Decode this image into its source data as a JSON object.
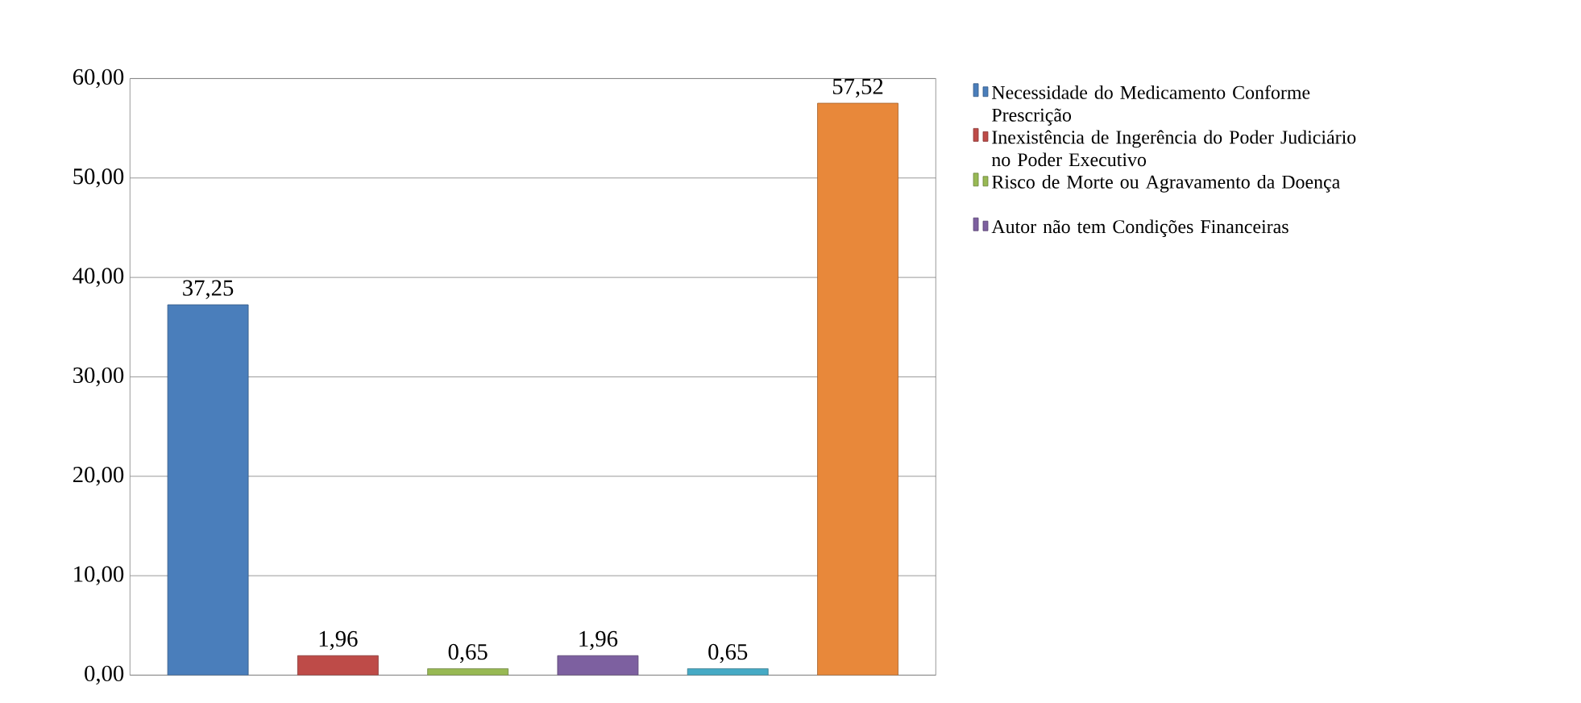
{
  "chart_data": {
    "type": "bar",
    "categories": [
      null
    ],
    "series": [
      {
        "name": "Necessidade do Medicamento Conforme Prescrição",
        "color": "#4a7ebb",
        "values": [
          37.25
        ],
        "value_labels": [
          "37,25"
        ]
      },
      {
        "name": "Inexistência de Ingerência do Poder Judiciário no Poder Executivo",
        "color": "#be4b48",
        "values": [
          1.96
        ],
        "value_labels": [
          "1,96"
        ]
      },
      {
        "name": "Risco de Morte ou Agravamento da Doença",
        "color": "#98b954",
        "values": [
          0.65
        ],
        "value_labels": [
          "0,65"
        ]
      },
      {
        "name": "Autor não tem Condições Financeiras",
        "color": "#7d60a0",
        "values": [
          1.96
        ],
        "value_labels": [
          "1,96"
        ]
      },
      {
        "color": "#46aac5",
        "values": [
          0.65
        ],
        "value_labels": [
          "0,65"
        ]
      },
      {
        "color": "#e8883a",
        "values": [
          57.52
        ],
        "value_labels": [
          "57,52"
        ]
      }
    ],
    "ylim": [
      0,
      60
    ],
    "yticks": [
      {
        "value": 0,
        "label": "0,00"
      },
      {
        "value": 10,
        "label": "10,00"
      },
      {
        "value": 20,
        "label": "20,00"
      },
      {
        "value": 30,
        "label": "30,00"
      },
      {
        "value": 40,
        "label": "40,00"
      },
      {
        "value": 50,
        "label": "50,00"
      },
      {
        "value": 60,
        "label": "60,00"
      }
    ],
    "grid": "y",
    "legend": "right"
  }
}
